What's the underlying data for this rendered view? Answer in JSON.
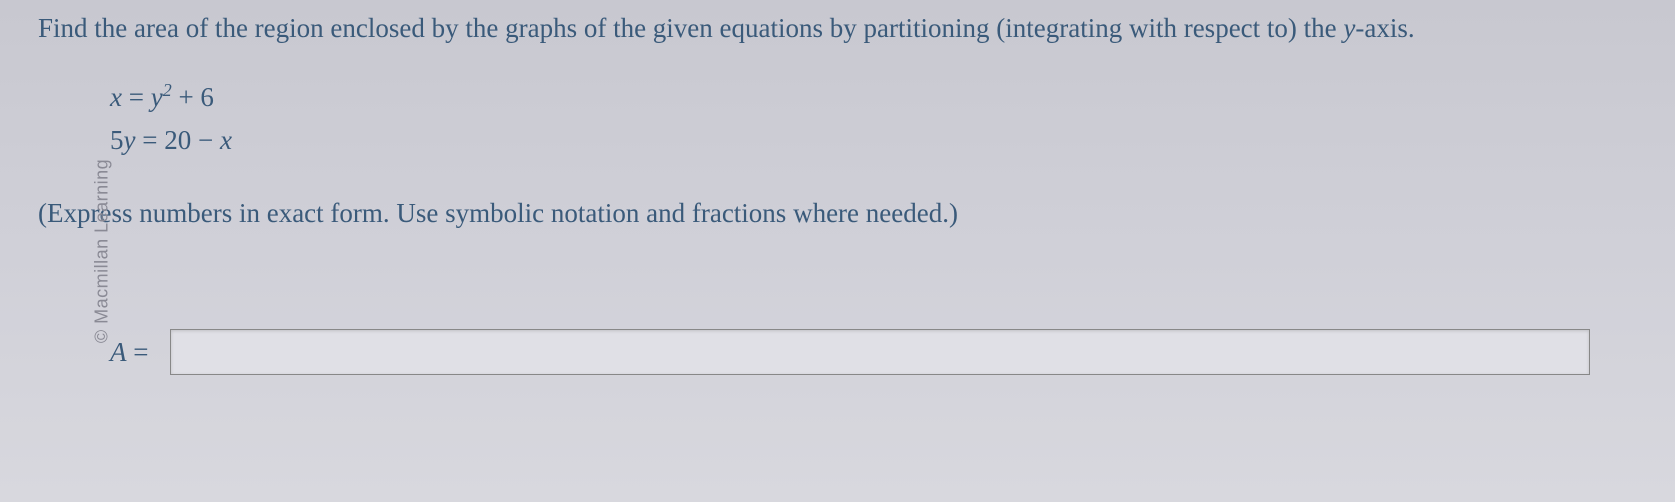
{
  "watermark": "© Macmillan Learning",
  "question": {
    "prefix": "Find the area of the region enclosed by the graphs of the given equations by partitioning (integrating with respect to) the ",
    "yaxis": "y",
    "suffix": "-axis."
  },
  "equations": {
    "eq1_lhs": "x",
    "eq1_eq": " = ",
    "eq1_rhs_base": "y",
    "eq1_rhs_exp": "2",
    "eq1_rhs_rest": " + 6",
    "eq2_lhs": "5y",
    "eq2_eq": " = ",
    "eq2_rhs": "20 − x"
  },
  "instruction": "(Express numbers in exact form. Use symbolic notation and fractions where needed.)",
  "answer": {
    "label_var": "A",
    "label_eq": " =",
    "value": ""
  },
  "colors": {
    "text": "#3a5a7a",
    "background_top": "#c8c8d0",
    "background_bottom": "#d8d8de",
    "watermark": "#8a8a95",
    "input_bg": "#e0e0e6",
    "input_border": "#888888"
  }
}
